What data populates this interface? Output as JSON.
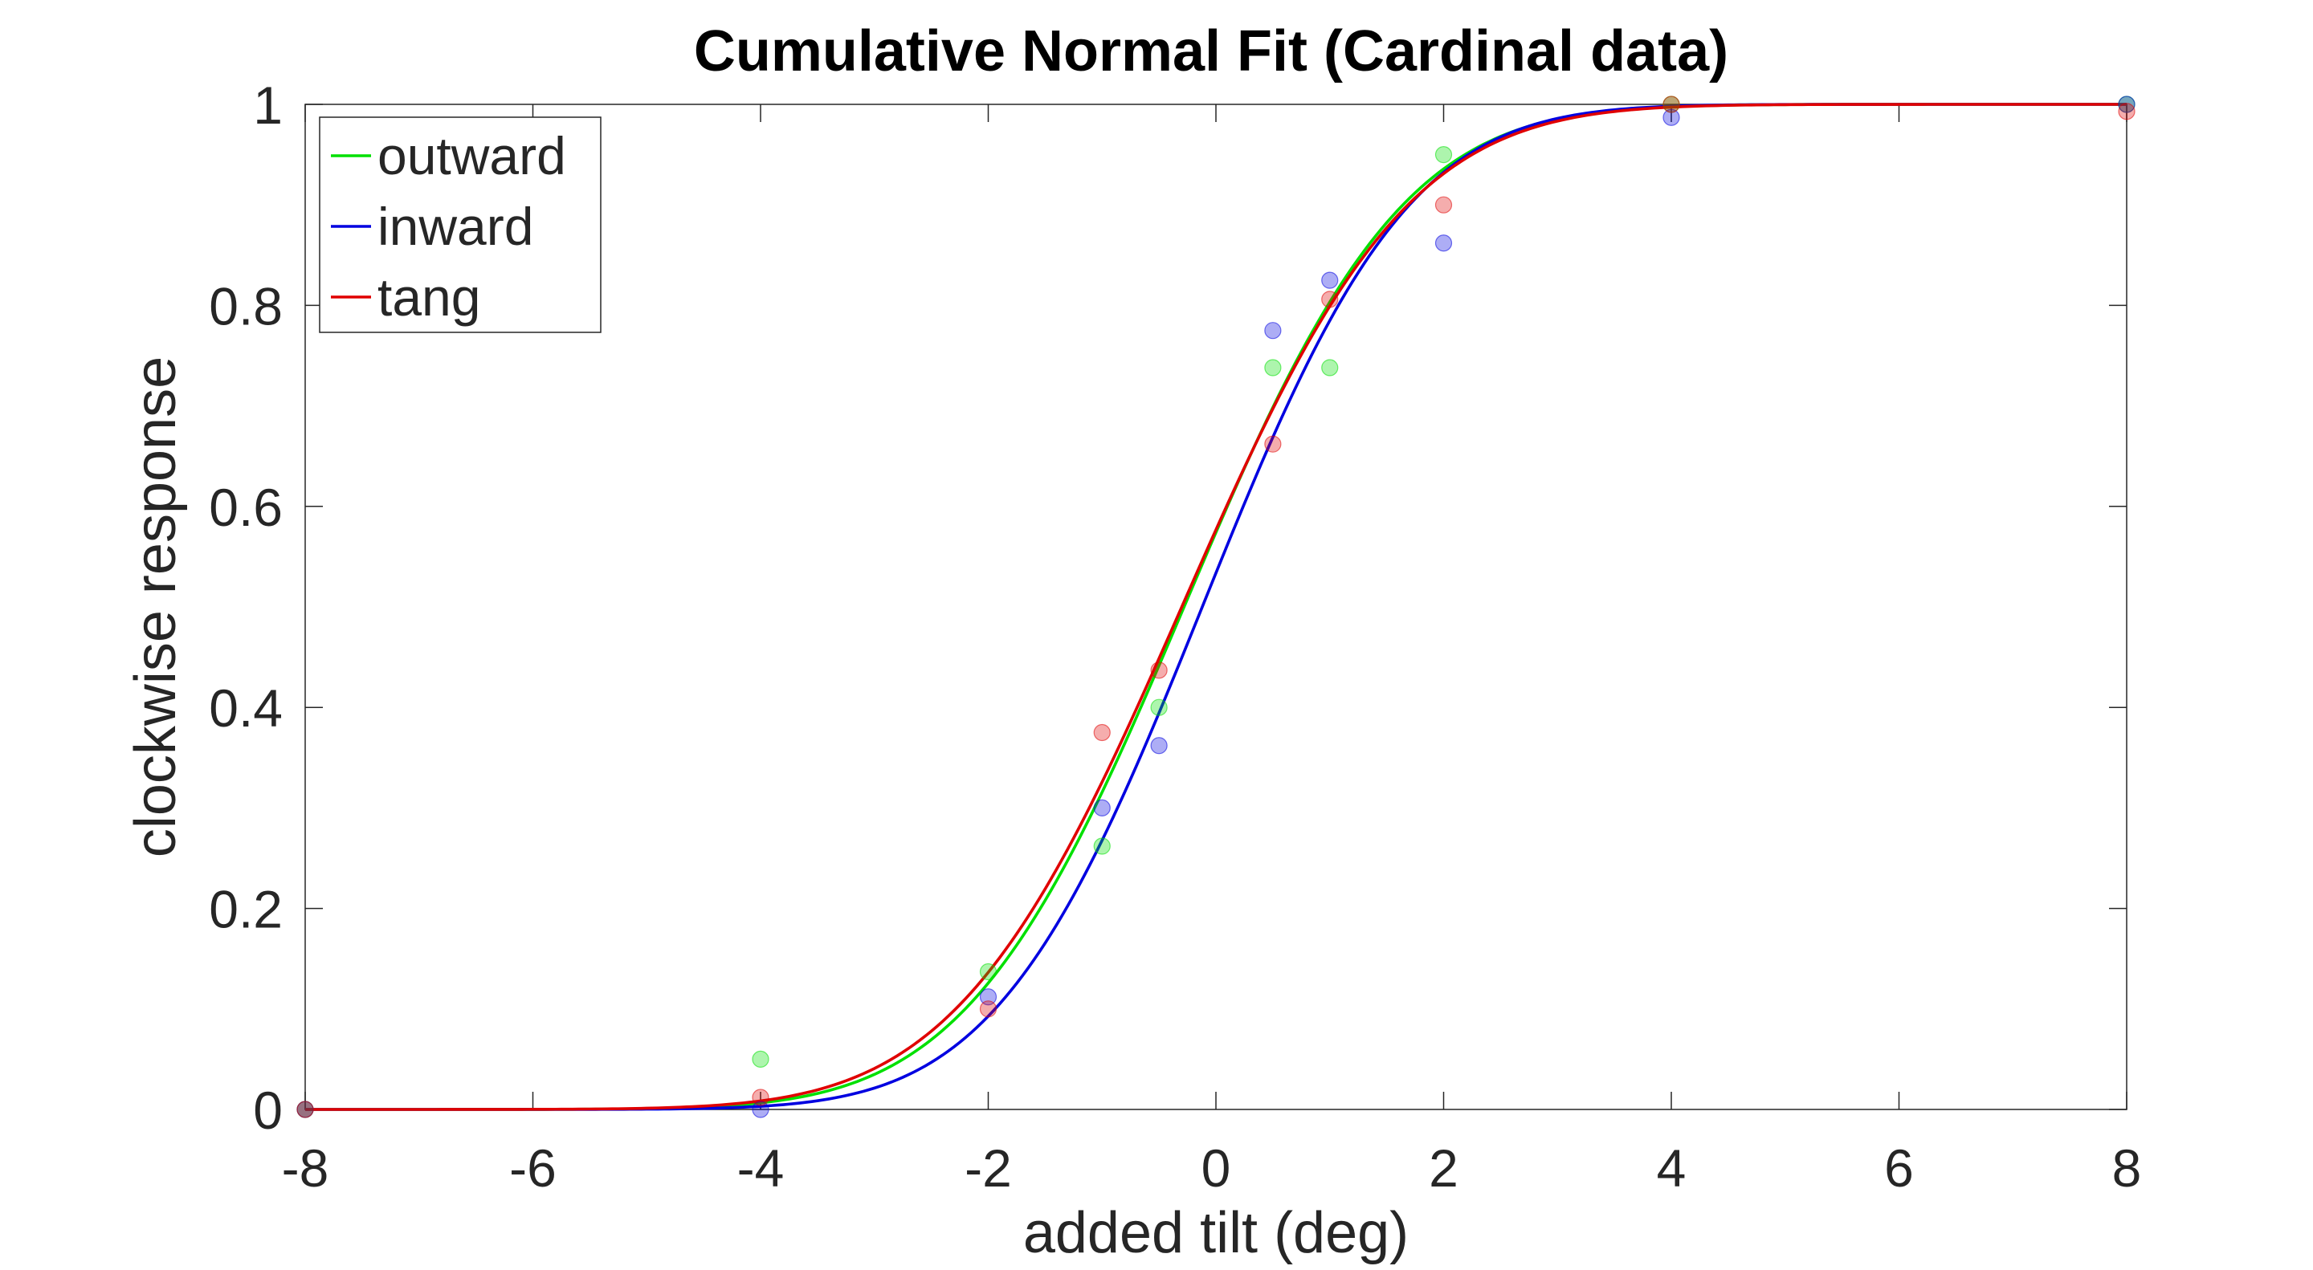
{
  "chart_data": {
    "type": "line",
    "title": "Cumulative Normal Fit (Cardinal data)",
    "xlabel": "added tilt (deg)",
    "ylabel": "clockwise response",
    "xlim": [
      -8,
      8
    ],
    "ylim": [
      0,
      1
    ],
    "xticks": [
      -8,
      -6,
      -4,
      -2,
      0,
      2,
      4,
      6,
      8
    ],
    "yticks": [
      0,
      0.2,
      0.4,
      0.6,
      0.8,
      1
    ],
    "xtick_labels": [
      "-8",
      "-6",
      "-4",
      "-2",
      "0",
      "2",
      "4",
      "6",
      "8"
    ],
    "ytick_labels": [
      "0",
      "0.2",
      "0.4",
      "0.6",
      "0.8",
      "1"
    ],
    "grid": false,
    "legend_position": "top-left",
    "series": [
      {
        "name": "outward",
        "color": "#00e000",
        "fit": {
          "mu": -0.28,
          "sigma": 1.5
        },
        "points": {
          "x": [
            -8,
            -4,
            -2,
            -1,
            -0.5,
            0.5,
            1,
            2,
            4,
            8
          ],
          "y": [
            0,
            0.05,
            0.137,
            0.262,
            0.4,
            0.738,
            0.738,
            0.95,
            1.0,
            1.0
          ]
        }
      },
      {
        "name": "inward",
        "color": "#0000e0",
        "fit": {
          "mu": -0.12,
          "sigma": 1.42
        },
        "points": {
          "x": [
            -8,
            -4,
            -2,
            -1,
            -0.5,
            0.5,
            1,
            2,
            4,
            8
          ],
          "y": [
            0,
            0,
            0.112,
            0.3,
            0.362,
            0.775,
            0.825,
            0.862,
            0.987,
            1.0
          ]
        }
      },
      {
        "name": "tang",
        "color": "#e00000",
        "fit": {
          "mu": -0.3,
          "sigma": 1.55
        },
        "points": {
          "x": [
            -8,
            -4,
            -2,
            -1,
            -0.5,
            0.5,
            1,
            2,
            4,
            8
          ],
          "y": [
            0,
            0.012,
            0.1,
            0.375,
            0.437,
            0.662,
            0.806,
            0.9,
            1.0,
            0.993
          ]
        }
      }
    ]
  }
}
